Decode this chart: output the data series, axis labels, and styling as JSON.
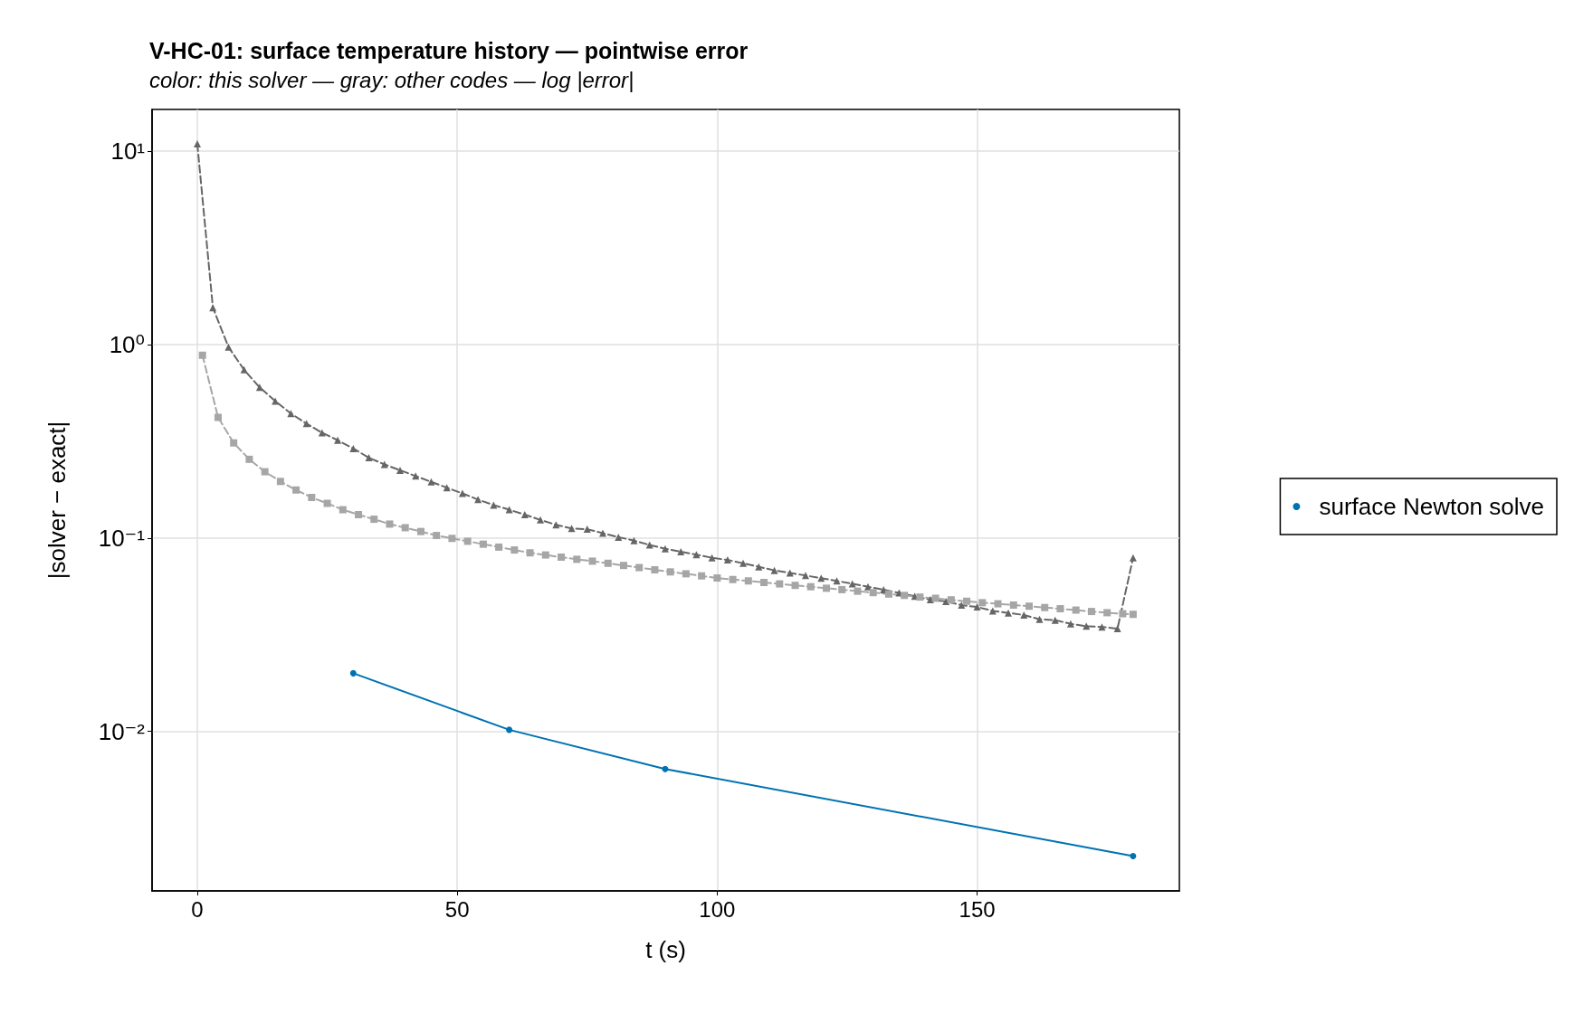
{
  "chart_data": {
    "type": "line",
    "title": "V-HC-01: surface temperature history — pointwise error",
    "subtitle": "color: this solver — gray: other codes — log |error|",
    "xlabel": "t (s)",
    "ylabel": "|solver − exact|",
    "xlim": [
      -8.7,
      188.9
    ],
    "xticks": [
      0,
      50,
      100,
      150
    ],
    "ylim": [
      0.0015,
      16.4
    ],
    "yticks": [
      {
        "value": 10,
        "label": "10¹"
      },
      {
        "value": 1,
        "label": "10⁰"
      },
      {
        "value": 0.1,
        "label": "10⁻¹"
      },
      {
        "value": 0.01,
        "label": "10⁻²"
      }
    ],
    "log": "y",
    "grid": true,
    "legend": "right",
    "series": [
      {
        "color": "#666666",
        "marker": "triangle",
        "line_style": "dashed",
        "x": [
          0,
          3,
          6,
          9,
          12,
          15,
          18,
          21,
          24,
          27,
          30,
          33,
          36,
          39,
          42,
          45,
          48,
          51,
          54,
          57,
          60,
          63,
          66,
          69,
          72,
          75,
          78,
          81,
          84,
          87,
          90,
          93,
          96,
          99,
          102,
          105,
          108,
          111,
          114,
          117,
          120,
          123,
          126,
          129,
          132,
          135,
          138,
          141,
          144,
          147,
          150,
          153,
          156,
          159,
          162,
          165,
          168,
          171,
          174,
          177,
          180
        ],
        "values": [
          10.9,
          1.55,
          0.97,
          0.74,
          0.6,
          0.51,
          0.44,
          0.39,
          0.35,
          0.32,
          0.29,
          0.26,
          0.24,
          0.224,
          0.209,
          0.195,
          0.182,
          0.17,
          0.158,
          0.148,
          0.14,
          0.132,
          0.124,
          0.117,
          0.112,
          0.111,
          0.106,
          0.101,
          0.097,
          0.092,
          0.088,
          0.085,
          0.082,
          0.079,
          0.077,
          0.074,
          0.071,
          0.068,
          0.066,
          0.064,
          0.062,
          0.06,
          0.058,
          0.056,
          0.054,
          0.052,
          0.05,
          0.048,
          0.047,
          0.045,
          0.044,
          0.042,
          0.041,
          0.04,
          0.038,
          0.0376,
          0.036,
          0.035,
          0.0347,
          0.034,
          0.079
        ]
      },
      {
        "color": "#a6a6a6",
        "marker": "square",
        "line_style": "dashed",
        "x": [
          1,
          4,
          7,
          10,
          13,
          16,
          19,
          22,
          25,
          28,
          31,
          34,
          37,
          40,
          43,
          46,
          49,
          52,
          55,
          58,
          61,
          64,
          67,
          70,
          73,
          76,
          79,
          82,
          85,
          88,
          91,
          94,
          97,
          100,
          103,
          106,
          109,
          112,
          115,
          118,
          121,
          124,
          127,
          130,
          133,
          136,
          139,
          142,
          145,
          148,
          151,
          154,
          157,
          160,
          163,
          166,
          169,
          172,
          175,
          178,
          180
        ],
        "values": [
          0.88,
          0.42,
          0.31,
          0.255,
          0.22,
          0.196,
          0.177,
          0.162,
          0.151,
          0.14,
          0.132,
          0.125,
          0.118,
          0.113,
          0.108,
          0.103,
          0.0995,
          0.0962,
          0.0929,
          0.0897,
          0.0867,
          0.0838,
          0.0817,
          0.0796,
          0.0776,
          0.0759,
          0.074,
          0.0721,
          0.0703,
          0.0685,
          0.0668,
          0.0653,
          0.0637,
          0.0621,
          0.061,
          0.06,
          0.0589,
          0.0579,
          0.0569,
          0.056,
          0.055,
          0.0541,
          0.0531,
          0.0522,
          0.0513,
          0.0505,
          0.0495,
          0.0488,
          0.0479,
          0.0471,
          0.0463,
          0.0457,
          0.045,
          0.0444,
          0.0437,
          0.0431,
          0.0424,
          0.0417,
          0.0411,
          0.0406,
          0.0403
        ]
      },
      {
        "name": "surface Newton solve",
        "color": "#0072b2",
        "marker": "circle",
        "line_style": "solid",
        "x": [
          30,
          60,
          90,
          180
        ],
        "values": [
          0.02,
          0.0102,
          0.0064,
          0.00227
        ]
      }
    ]
  }
}
